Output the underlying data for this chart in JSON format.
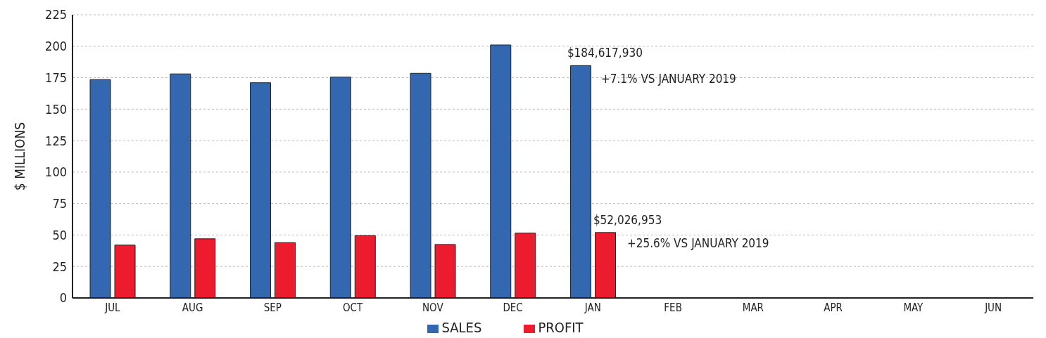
{
  "chart_data": {
    "type": "bar",
    "ylabel": "$ MILLIONS",
    "categories": [
      "JUL",
      "AUG",
      "SEP",
      "OCT",
      "NOV",
      "DEC",
      "JAN",
      "FEB",
      "MAR",
      "APR",
      "MAY",
      "JUN"
    ],
    "series": [
      {
        "name": "SALES",
        "color": "#3368b0",
        "values": [
          173.5,
          178,
          171,
          175.5,
          178.5,
          201,
          184.6,
          null,
          null,
          null,
          null,
          0
        ]
      },
      {
        "name": "PROFIT",
        "color": "#ec1c2e",
        "values": [
          42,
          47,
          44,
          49.5,
          42.5,
          51.5,
          52.0,
          null,
          null,
          null,
          null,
          0
        ]
      }
    ],
    "annotations": [
      {
        "text": "$184,617,930",
        "x": "JAN",
        "y": 184.6
      },
      {
        "text": "+7.1% VS JANUARY 2019",
        "x": "JAN",
        "y": 171
      },
      {
        "text": "$52,026,953",
        "x": "JAN",
        "y": 52.0
      },
      {
        "text": "+25.6% VS JANUARY 2019",
        "x": "JAN",
        "y": 40
      }
    ],
    "ylim": [
      0,
      225
    ],
    "yticks": [
      0,
      25,
      50,
      75,
      100,
      125,
      150,
      175,
      200,
      225
    ],
    "grid": "y",
    "legend": "bottom"
  }
}
